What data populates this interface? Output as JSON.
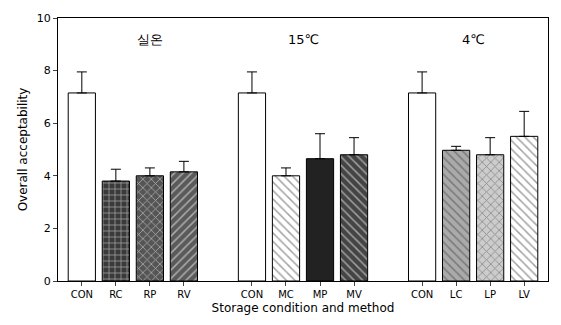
{
  "chart_data": {
    "type": "bar",
    "x_label": "Storage condition and method",
    "y_label": "Overall acceptability",
    "categories": [
      "CON",
      "RC",
      "RP",
      "RV",
      null,
      "CON",
      "MC",
      "MP",
      "MV",
      null,
      "CON",
      "LC",
      "LP",
      "LV"
    ],
    "values": [
      7.15,
      3.8,
      4.0,
      4.15,
      null,
      7.15,
      4.0,
      4.65,
      4.8,
      null,
      7.15,
      4.97,
      4.8,
      5.5
    ],
    "errors": [
      0.8,
      0.45,
      0.3,
      0.4,
      null,
      0.8,
      0.3,
      0.95,
      0.65,
      null,
      0.8,
      0.15,
      0.65,
      0.95
    ],
    "colors": [
      "#ffffff",
      "#3a3a3a",
      "#555555",
      "#5a5a5a",
      "#ffffff",
      "#ffffff",
      "#ffffff",
      "#222222",
      "#444444",
      "#ffffff",
      "#ffffff",
      "#aaaaaa",
      "#cccccc",
      "#ffffff"
    ],
    "ylim": [
      0,
      10
    ],
    "yticks": [
      0,
      2,
      4,
      6,
      8,
      10
    ],
    "grid": false,
    "annotations": [
      {
        "text": "실온",
        "x": 2,
        "y": 9.2
      },
      {
        "text": "15℃",
        "x": 6.5,
        "y": 9.2
      },
      {
        "text": "4℃",
        "x": 11.5,
        "y": 9.2
      }
    ]
  }
}
